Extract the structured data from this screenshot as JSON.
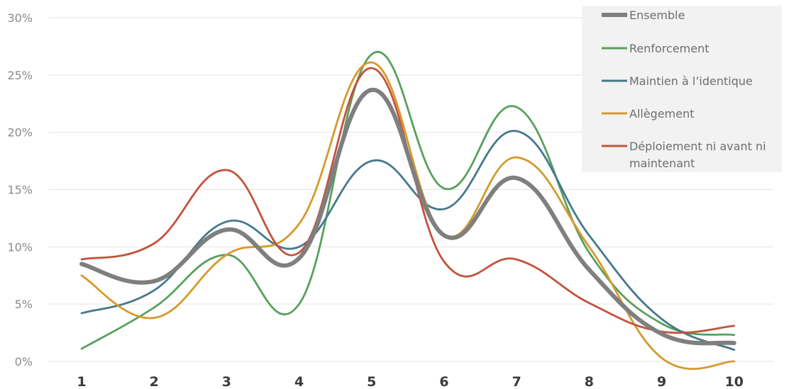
{
  "chart_data": {
    "type": "line",
    "smooth": true,
    "categories": [
      "1",
      "2",
      "3",
      "4",
      "5",
      "6",
      "7",
      "8",
      "9",
      "10"
    ],
    "ylim": [
      0,
      30
    ],
    "yticks": [
      "0%",
      "5%",
      "10%",
      "15%",
      "20%",
      "25%",
      "30%"
    ],
    "ytick_values": [
      0,
      5,
      10,
      15,
      20,
      25,
      30
    ],
    "grid": true,
    "legend_position": "top-right",
    "series": [
      {
        "name": "Ensemble",
        "color": "#7f7f7f",
        "emphasis": true,
        "values": [
          8.5,
          7.0,
          11.5,
          9.0,
          23.7,
          11.0,
          16.0,
          8.0,
          2.4,
          1.6
        ]
      },
      {
        "name": "Renforcement",
        "color": "#58a05c",
        "values": [
          1.1,
          4.7,
          9.3,
          5.0,
          26.8,
          15.1,
          22.2,
          9.5,
          3.3,
          2.3
        ]
      },
      {
        "name": "Maintien à l’identique",
        "color": "#46788c",
        "values": [
          4.2,
          6.2,
          12.2,
          10.0,
          17.5,
          13.3,
          20.1,
          11.0,
          3.7,
          1.0
        ]
      },
      {
        "name": "Allègement",
        "color": "#d49a2c",
        "values": [
          7.5,
          3.8,
          9.3,
          12.0,
          26.1,
          11.1,
          17.8,
          10.0,
          0.3,
          0.0
        ]
      },
      {
        "name": "Déploiement ni avant ni maintenant",
        "color": "#c4523d",
        "values": [
          8.9,
          10.3,
          16.7,
          9.5,
          25.6,
          8.7,
          8.9,
          5.1,
          2.6,
          3.1
        ]
      }
    ]
  }
}
